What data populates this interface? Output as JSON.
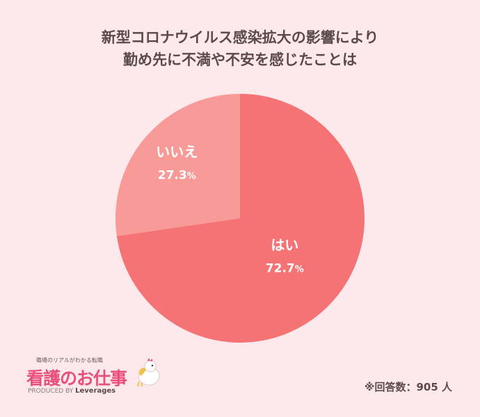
{
  "chart_data": {
    "type": "pie",
    "title": [
      "新型コロナウイルス感染拡大の影響により",
      "勤め先に不満や不安を感じたことは"
    ],
    "slices": [
      {
        "label": "はい",
        "value": 72.7,
        "display": "72.7",
        "unit": "%",
        "color": "#f57375"
      },
      {
        "label": "いいえ",
        "value": 27.3,
        "display": "27.3",
        "unit": "%",
        "color": "#f89b98"
      }
    ]
  },
  "footnote": "※回答数：905 人",
  "logo": {
    "tagline": "職場のリアルがわかる転職",
    "name": "看護のお仕事",
    "credit_prefix": "PRODUCED BY",
    "credit_brand": "Leverages"
  }
}
